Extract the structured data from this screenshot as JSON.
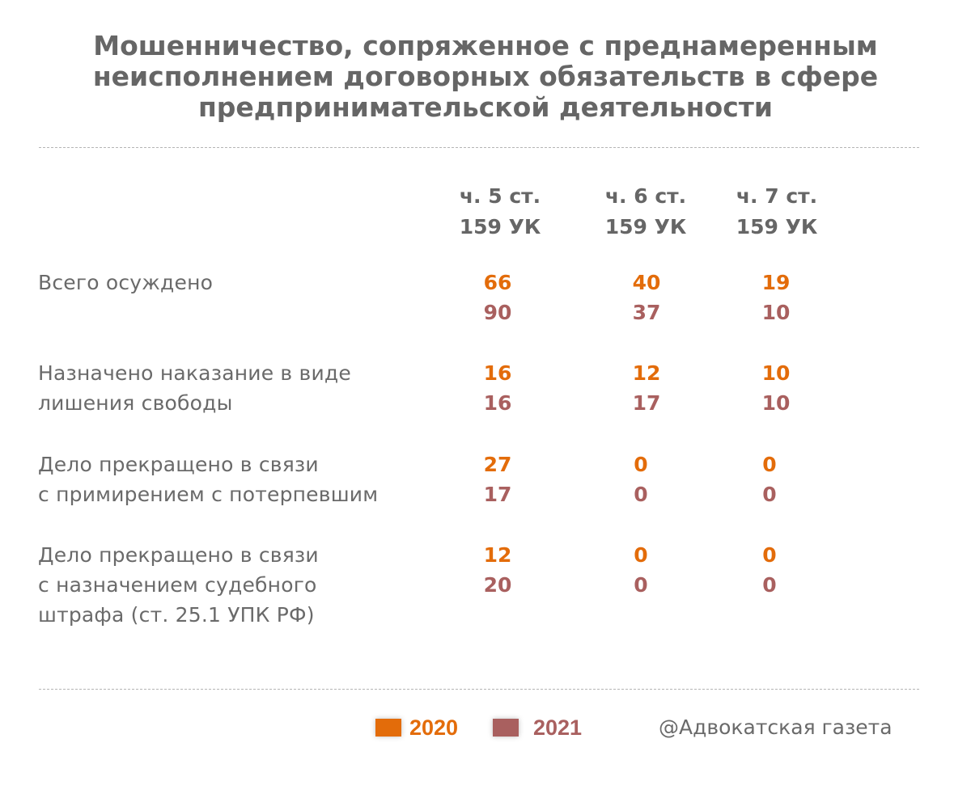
{
  "chart_data": {
    "type": "table",
    "title": [
      "Мошенничество, сопряженное с преднамеренным",
      "неисполнением договорных обязательств в сфере",
      "предпринимательской деятельности"
    ],
    "columns": [
      {
        "line1": "ч. 5 ст.",
        "line2": "159 УК"
      },
      {
        "line1": "ч. 6 ст.",
        "line2": "159 УК"
      },
      {
        "line1": "ч. 7 ст.",
        "line2": "159 УК"
      }
    ],
    "rows": [
      {
        "label": [
          "Всего осуждено"
        ],
        "v2020": [
          "66",
          "40",
          "19"
        ],
        "v2021": [
          "90",
          "37",
          "10"
        ]
      },
      {
        "label": [
          "Назначено наказание в виде",
          "лишения свободы"
        ],
        "v2020": [
          "16",
          "12",
          "10"
        ],
        "v2021": [
          "16",
          "17",
          "10"
        ]
      },
      {
        "label": [
          "Дело прекращено в связи",
          "с примирением с потерпевшим"
        ],
        "v2020": [
          "27",
          "0",
          "0"
        ],
        "v2021": [
          "17",
          "0",
          "0"
        ]
      },
      {
        "label": [
          "Дело прекращено в связи",
          "с назначением судебного",
          "штрафа (ст.  25.1 УПК РФ)"
        ],
        "v2020": [
          "12",
          "0",
          "0"
        ],
        "v2021": [
          "20",
          "0",
          "0"
        ]
      }
    ],
    "legend": [
      {
        "name": "2020",
        "color": "#e36c0a"
      },
      {
        "name": "2021",
        "color": "#a9605f"
      }
    ]
  },
  "credit": "@Адвокатская газета"
}
